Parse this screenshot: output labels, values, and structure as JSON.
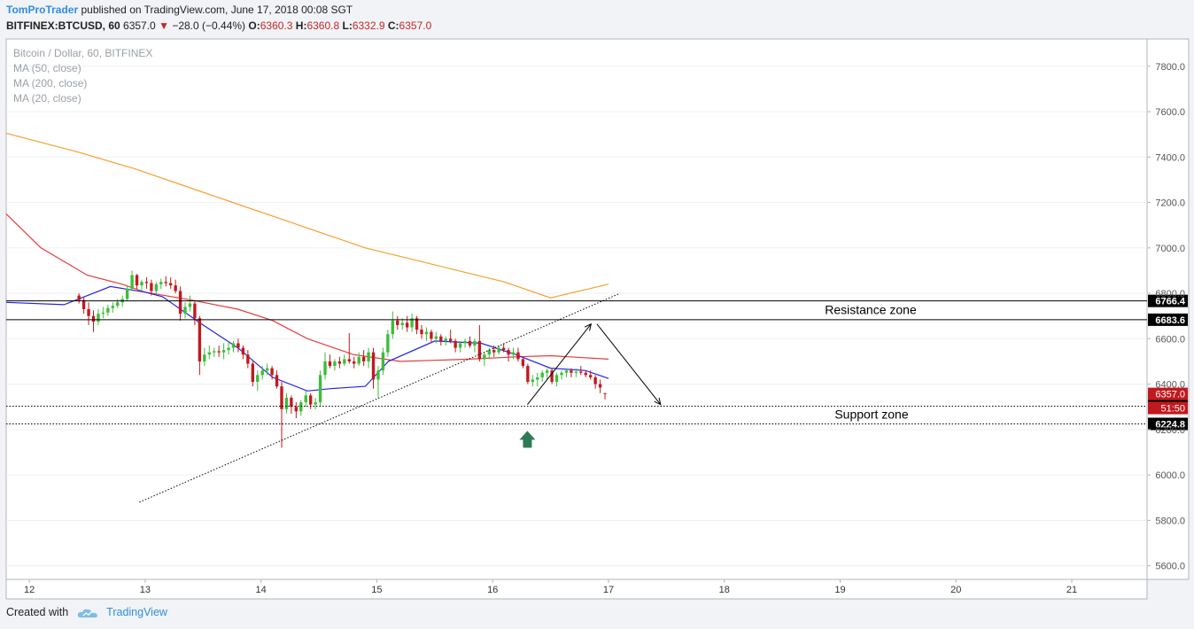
{
  "header": {
    "author": "TomProTrader",
    "published_text": "published on TradingView.com, June 17, 2018 00:08 SGT",
    "symbol": "BITFINEX:BTCUSD, 60",
    "last": "6357.0",
    "change": "−28.0 (−0.44%)",
    "o_label": "O:",
    "o_value": "6360.3",
    "h_label": "H:",
    "h_value": "6360.8",
    "l_label": "L:",
    "l_value": "6332.9",
    "c_label": "C:",
    "c_value": "6357.0"
  },
  "legend": {
    "title": "Bitcoin / Dollar, 60, BITFINEX",
    "ma50": "MA (50, close)",
    "ma200": "MA (200, close)",
    "ma20": "MA (20, close)"
  },
  "footer": {
    "created_with": "Created with",
    "brand": "TradingView"
  },
  "colors": {
    "bull": "#3dbd3a",
    "bear": "#c2191e",
    "ma20": "#2323e6",
    "ma50": "#e63b3b",
    "ma200": "#f5a030",
    "text_muted": "#9aa0a6",
    "accent": "#2f8ee0",
    "arrow_up": "#2f7a55"
  },
  "chart_data": {
    "type": "candlestick",
    "title": "Bitcoin / Dollar, 60, BITFINEX",
    "x_ticks": [
      "12",
      "13",
      "14",
      "15",
      "16",
      "17",
      "18",
      "19",
      "20",
      "21"
    ],
    "x_tick_days": [
      12,
      13,
      14,
      15,
      16,
      17,
      18,
      19,
      20,
      21
    ],
    "x_range": [
      11.8,
      21.65
    ],
    "ylim": [
      5540,
      7920
    ],
    "y_ticks": [
      "5600.0",
      "5800.0",
      "6000.0",
      "6200.0",
      "6400.0",
      "6600.0",
      "6800.0",
      "7000.0",
      "7200.0",
      "7400.0",
      "7600.0",
      "7800.0"
    ],
    "y_tick_values": [
      5600,
      5800,
      6000,
      6200,
      6400,
      6600,
      6800,
      7000,
      7200,
      7400,
      7600,
      7800
    ],
    "candles_ohlc": [
      [
        6790,
        6800,
        6755,
        6770
      ],
      [
        6770,
        6785,
        6710,
        6730
      ],
      [
        6730,
        6760,
        6660,
        6700
      ],
      [
        6700,
        6725,
        6630,
        6675
      ],
      [
        6675,
        6730,
        6660,
        6710
      ],
      [
        6710,
        6740,
        6690,
        6715
      ],
      [
        6715,
        6750,
        6700,
        6735
      ],
      [
        6735,
        6760,
        6715,
        6745
      ],
      [
        6745,
        6775,
        6735,
        6760
      ],
      [
        6760,
        6790,
        6740,
        6775
      ],
      [
        6775,
        6830,
        6765,
        6820
      ],
      [
        6820,
        6900,
        6810,
        6880
      ],
      [
        6880,
        6885,
        6820,
        6835
      ],
      [
        6835,
        6860,
        6810,
        6850
      ],
      [
        6850,
        6870,
        6820,
        6845
      ],
      [
        6845,
        6860,
        6790,
        6810
      ],
      [
        6810,
        6850,
        6795,
        6840
      ],
      [
        6840,
        6865,
        6820,
        6850
      ],
      [
        6850,
        6875,
        6830,
        6845
      ],
      [
        6845,
        6870,
        6820,
        6835
      ],
      [
        6835,
        6860,
        6800,
        6810
      ],
      [
        6810,
        6830,
        6680,
        6710
      ],
      [
        6710,
        6760,
        6690,
        6740
      ],
      [
        6740,
        6790,
        6720,
        6755
      ],
      [
        6755,
        6765,
        6660,
        6690
      ],
      [
        6690,
        6700,
        6440,
        6500
      ],
      [
        6500,
        6560,
        6480,
        6530
      ],
      [
        6530,
        6570,
        6510,
        6540
      ],
      [
        6540,
        6560,
        6520,
        6545
      ],
      [
        6545,
        6570,
        6520,
        6540
      ],
      [
        6540,
        6580,
        6510,
        6550
      ],
      [
        6550,
        6585,
        6530,
        6560
      ],
      [
        6560,
        6590,
        6540,
        6580
      ],
      [
        6580,
        6600,
        6540,
        6560
      ],
      [
        6560,
        6570,
        6510,
        6530
      ],
      [
        6530,
        6550,
        6470,
        6490
      ],
      [
        6490,
        6500,
        6390,
        6410
      ],
      [
        6410,
        6460,
        6370,
        6440
      ],
      [
        6440,
        6480,
        6420,
        6460
      ],
      [
        6460,
        6490,
        6440,
        6470
      ],
      [
        6470,
        6480,
        6420,
        6440
      ],
      [
        6440,
        6460,
        6380,
        6390
      ],
      [
        6390,
        6410,
        6120,
        6290
      ],
      [
        6290,
        6360,
        6270,
        6340
      ],
      [
        6340,
        6350,
        6270,
        6300
      ],
      [
        6300,
        6320,
        6250,
        6280
      ],
      [
        6280,
        6330,
        6260,
        6320
      ],
      [
        6320,
        6370,
        6300,
        6350
      ],
      [
        6350,
        6360,
        6290,
        6310
      ],
      [
        6310,
        6340,
        6290,
        6320
      ],
      [
        6320,
        6460,
        6300,
        6440
      ],
      [
        6440,
        6540,
        6420,
        6500
      ],
      [
        6500,
        6530,
        6470,
        6480
      ],
      [
        6480,
        6510,
        6460,
        6500
      ],
      [
        6500,
        6520,
        6470,
        6490
      ],
      [
        6490,
        6530,
        6480,
        6510
      ],
      [
        6510,
        6625,
        6490,
        6500
      ],
      [
        6500,
        6520,
        6470,
        6490
      ],
      [
        6490,
        6540,
        6480,
        6520
      ],
      [
        6520,
        6550,
        6480,
        6500
      ],
      [
        6500,
        6560,
        6470,
        6540
      ],
      [
        6540,
        6560,
        6380,
        6420
      ],
      [
        6420,
        6480,
        6340,
        6460
      ],
      [
        6460,
        6560,
        6440,
        6540
      ],
      [
        6540,
        6640,
        6520,
        6620
      ],
      [
        6620,
        6720,
        6600,
        6680
      ],
      [
        6680,
        6700,
        6640,
        6660
      ],
      [
        6660,
        6690,
        6640,
        6670
      ],
      [
        6670,
        6700,
        6630,
        6650
      ],
      [
        6650,
        6710,
        6630,
        6690
      ],
      [
        6690,
        6700,
        6620,
        6640
      ],
      [
        6640,
        6660,
        6600,
        6620
      ],
      [
        6620,
        6650,
        6590,
        6630
      ],
      [
        6630,
        6640,
        6580,
        6600
      ],
      [
        6600,
        6630,
        6580,
        6610
      ],
      [
        6610,
        6620,
        6570,
        6590
      ],
      [
        6590,
        6610,
        6570,
        6600
      ],
      [
        6600,
        6640,
        6580,
        6590
      ],
      [
        6590,
        6600,
        6540,
        6560
      ],
      [
        6560,
        6590,
        6540,
        6580
      ],
      [
        6580,
        6600,
        6560,
        6590
      ],
      [
        6590,
        6610,
        6560,
        6570
      ],
      [
        6570,
        6600,
        6540,
        6590
      ],
      [
        6590,
        6660,
        6500,
        6510
      ],
      [
        6510,
        6540,
        6480,
        6530
      ],
      [
        6530,
        6560,
        6510,
        6550
      ],
      [
        6550,
        6570,
        6520,
        6540
      ],
      [
        6540,
        6570,
        6530,
        6560
      ],
      [
        6560,
        6580,
        6540,
        6550
      ],
      [
        6550,
        6560,
        6500,
        6530
      ],
      [
        6530,
        6560,
        6510,
        6540
      ],
      [
        6540,
        6560,
        6500,
        6510
      ],
      [
        6510,
        6520,
        6470,
        6480
      ],
      [
        6480,
        6490,
        6400,
        6410
      ],
      [
        6410,
        6440,
        6390,
        6420
      ],
      [
        6420,
        6450,
        6390,
        6430
      ],
      [
        6430,
        6460,
        6410,
        6450
      ],
      [
        6450,
        6470,
        6420,
        6460
      ],
      [
        6460,
        6470,
        6400,
        6410
      ],
      [
        6410,
        6450,
        6390,
        6440
      ],
      [
        6440,
        6460,
        6420,
        6450
      ],
      [
        6450,
        6470,
        6430,
        6460
      ],
      [
        6460,
        6470,
        6430,
        6450
      ],
      [
        6450,
        6470,
        6430,
        6455
      ],
      [
        6455,
        6480,
        6440,
        6450
      ],
      [
        6450,
        6460,
        6430,
        6440
      ],
      [
        6440,
        6460,
        6420,
        6430
      ],
      [
        6430,
        6440,
        6380,
        6400
      ],
      [
        6400,
        6420,
        6360,
        6385
      ],
      [
        6360.3,
        6360.8,
        6332.9,
        6357.0
      ]
    ],
    "ma20": [
      [
        11.8,
        6760
      ],
      [
        12.3,
        6750
      ],
      [
        12.7,
        6830
      ],
      [
        13.0,
        6805
      ],
      [
        13.15,
        6785
      ],
      [
        13.5,
        6660
      ],
      [
        13.8,
        6560
      ],
      [
        14.1,
        6430
      ],
      [
        14.4,
        6370
      ],
      [
        14.6,
        6380
      ],
      [
        14.9,
        6390
      ],
      [
        15.1,
        6500
      ],
      [
        15.5,
        6590
      ],
      [
        15.9,
        6580
      ],
      [
        16.2,
        6530
      ],
      [
        16.5,
        6470
      ],
      [
        16.8,
        6460
      ],
      [
        17.0,
        6425
      ]
    ],
    "ma50": [
      [
        11.8,
        7150
      ],
      [
        12.1,
        7000
      ],
      [
        12.5,
        6880
      ],
      [
        12.8,
        6840
      ],
      [
        13.0,
        6805
      ],
      [
        13.4,
        6770
      ],
      [
        13.8,
        6730
      ],
      [
        14.1,
        6680
      ],
      [
        14.4,
        6600
      ],
      [
        14.8,
        6530
      ],
      [
        15.2,
        6500
      ],
      [
        15.5,
        6505
      ],
      [
        15.8,
        6510
      ],
      [
        16.2,
        6520
      ],
      [
        16.5,
        6525
      ],
      [
        17.0,
        6510
      ]
    ],
    "ma200": [
      [
        11.8,
        7505
      ],
      [
        12.4,
        7425
      ],
      [
        12.9,
        7350
      ],
      [
        13.3,
        7280
      ],
      [
        13.7,
        7210
      ],
      [
        14.1,
        7140
      ],
      [
        14.5,
        7070
      ],
      [
        14.9,
        7000
      ],
      [
        15.3,
        6950
      ],
      [
        15.7,
        6900
      ],
      [
        16.1,
        6850
      ],
      [
        16.5,
        6780
      ],
      [
        17.0,
        6840
      ]
    ],
    "levels": [
      {
        "value": 6766.4,
        "label": "6766.4",
        "style": "solid",
        "zone": "Resistance zone"
      },
      {
        "value": 6683.6,
        "label": "6683.6",
        "style": "solid",
        "zone": ""
      },
      {
        "value": 6302.8,
        "label": "6302.8",
        "style": "dotted",
        "zone": "Support zone"
      },
      {
        "value": 6224.8,
        "label": "6224.8",
        "style": "dotted",
        "zone": ""
      }
    ],
    "annotations": {
      "resistance_text": "Resistance zone",
      "support_text": "Support zone",
      "trendline": [
        [
          12.95,
          5880
        ],
        [
          17.1,
          6800
        ]
      ],
      "projection_up": [
        [
          16.3,
          6310
        ],
        [
          16.85,
          6665
        ]
      ],
      "projection_down": [
        [
          16.9,
          6665
        ],
        [
          17.45,
          6310
        ]
      ],
      "up_arrow": [
        16.3,
        6155
      ]
    },
    "last_price_label": "6357.0",
    "countdown_label": "51:50"
  }
}
